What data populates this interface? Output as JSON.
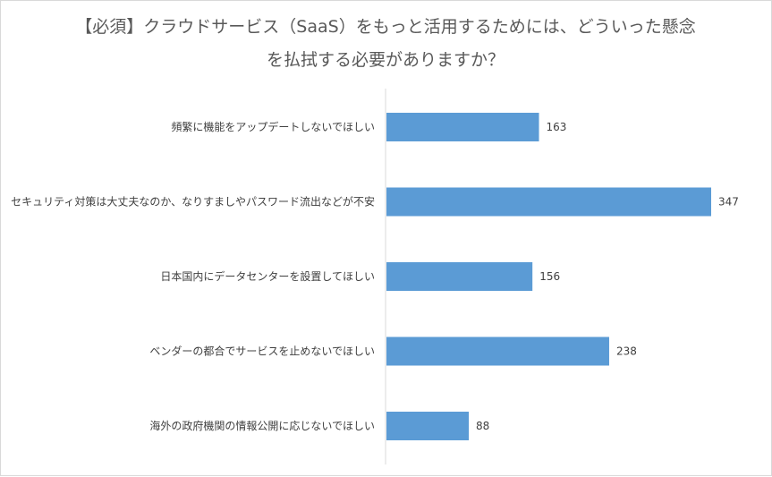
{
  "chart_data": {
    "type": "bar",
    "orientation": "horizontal",
    "title_line1": "【必須】クラウドサービス（SaaS）をもっと活用するためには、どういった懸念",
    "title_line2": "を払拭する必要がありますか？",
    "categories": [
      "頻繁に機能をアップデートしないでほしい",
      "セキュリティ対策は大丈夫なのか、なりすましやパスワード流出などが不安",
      "日本国内にデータセンターを設置してほしい",
      "ベンダーの都合でサービスを止めないでほしい",
      "海外の政府機関の情報公開に応じないでほしい"
    ],
    "values": [
      163,
      347,
      156,
      238,
      88
    ],
    "xlim": [
      0,
      360
    ],
    "grid": false,
    "legend": "none",
    "colors": {
      "bar": "#5b9bd5",
      "axis": "#d9d9d9",
      "text": "#404040",
      "title": "#595959"
    }
  }
}
